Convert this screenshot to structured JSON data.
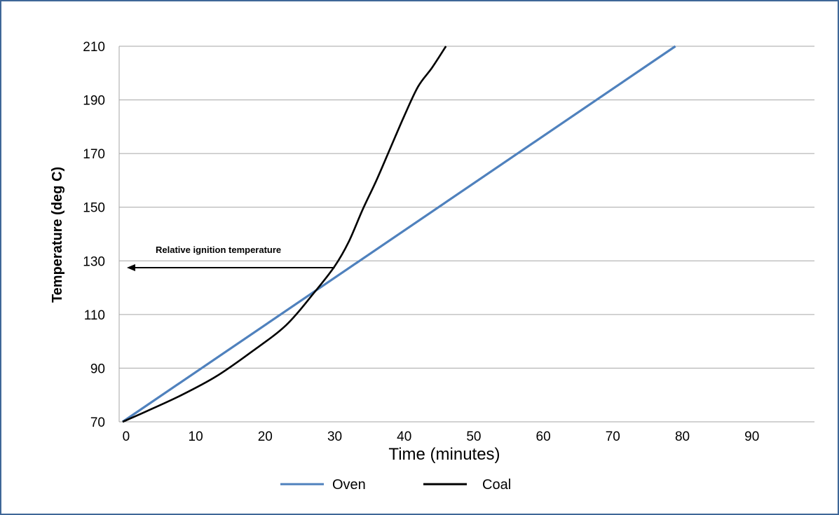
{
  "chart_data": {
    "type": "line",
    "xlabel": "Time (minutes)",
    "ylabel": "Temperature (deg C)",
    "xlim": [
      -1,
      99
    ],
    "ylim": [
      70,
      210
    ],
    "x_ticks": [
      0,
      10,
      20,
      30,
      40,
      50,
      60,
      70,
      80,
      90
    ],
    "y_ticks": [
      70,
      90,
      110,
      130,
      150,
      170,
      190,
      210
    ],
    "grid": "horizontal",
    "legend": "bottom",
    "series": [
      {
        "name": "Oven",
        "color": "#4f81bd",
        "x": [
          -0.5,
          79
        ],
        "y": [
          70,
          210
        ]
      },
      {
        "name": "Coal",
        "color": "#000000",
        "x": [
          -0.5,
          3,
          8,
          13,
          18,
          23,
          27,
          30,
          32,
          34,
          36,
          38,
          40,
          42,
          44,
          46
        ],
        "y": [
          70,
          74,
          80,
          87,
          96,
          106,
          118,
          128,
          137,
          149,
          160,
          172,
          184,
          195,
          202,
          210
        ]
      }
    ],
    "annotation": {
      "text": "Relative ignition temperature",
      "y": 128,
      "x_from": 30,
      "x_to": -0.5
    }
  }
}
